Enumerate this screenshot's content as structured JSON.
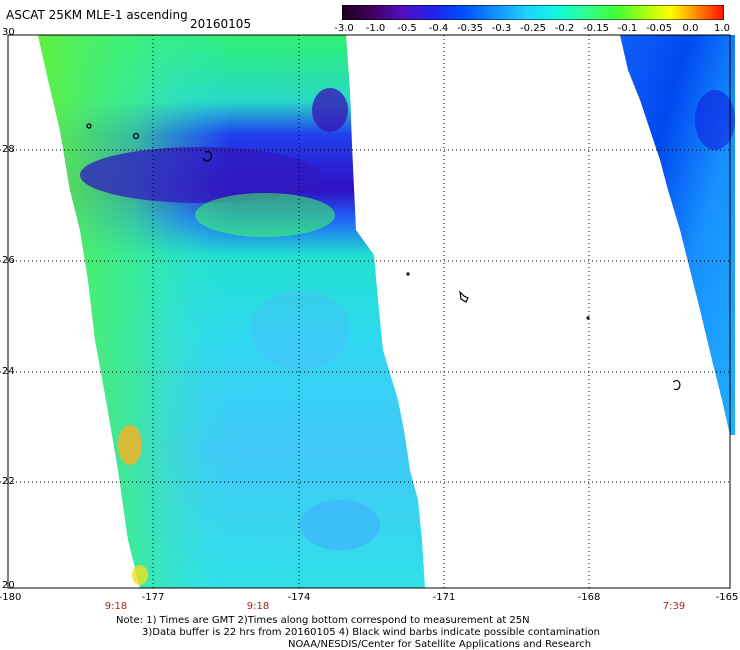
{
  "header": {
    "title": "ASCAT 25KM MLE-1 ascending",
    "date": "20160105"
  },
  "colorbar": {
    "labels": [
      "-3.0",
      "-1.0",
      "-0.5",
      "-0.4",
      "-0.35",
      "-0.3",
      "-0.25",
      "-0.2",
      "-0.15",
      "-0.1",
      "-0.05",
      "0.0",
      "1.0"
    ],
    "colors": [
      "#300030",
      "#5a00a8",
      "#2828e0",
      "#0050ff",
      "#1890ff",
      "#20c8ff",
      "#10f0e8",
      "#30ffa0",
      "#40ff40",
      "#a0ff20",
      "#f0f000",
      "#ff9000",
      "#ff2000"
    ]
  },
  "axes": {
    "lat_labels": [
      "30",
      "28",
      "26",
      "24",
      "22",
      "20"
    ],
    "lon_labels": [
      "-180",
      "-177",
      "-174",
      "-171",
      "-168",
      "-165"
    ],
    "time_labels": [
      "9:18",
      "9:18",
      "7:39"
    ]
  },
  "notes": {
    "line1": "Note: 1) Times are GMT 2)Times along bottom correspond to measurement at 25N",
    "line2": "3)Data buffer is 22 hrs from 20160105 4) Black wind barbs indicate possible contamination",
    "line3": "NOAA/NESDIS/Center for Satellite Applications and Research"
  }
}
